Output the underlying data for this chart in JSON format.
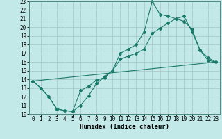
{
  "xlabel": "Humidex (Indice chaleur)",
  "bg_color": "#c2e8e8",
  "line_color": "#1a7a6a",
  "grid_color": "#a8cccc",
  "xlim": [
    -0.5,
    23.5
  ],
  "ylim": [
    10,
    23
  ],
  "xticks": [
    0,
    1,
    2,
    3,
    4,
    5,
    6,
    7,
    8,
    9,
    10,
    11,
    12,
    13,
    14,
    15,
    16,
    17,
    18,
    19,
    20,
    21,
    22,
    23
  ],
  "yticks": [
    10,
    11,
    12,
    13,
    14,
    15,
    16,
    17,
    18,
    19,
    20,
    21,
    22,
    23
  ],
  "line1_x": [
    0,
    1,
    2,
    3,
    4,
    5,
    6,
    7,
    8,
    9,
    10,
    11,
    12,
    13,
    14,
    15,
    16,
    17,
    18,
    19,
    20,
    21,
    22,
    23
  ],
  "line1_y": [
    13.8,
    13.0,
    12.0,
    10.6,
    10.4,
    10.3,
    12.7,
    13.2,
    13.9,
    14.2,
    15.0,
    16.3,
    16.7,
    17.0,
    17.5,
    19.3,
    19.9,
    20.5,
    21.0,
    21.3,
    19.5,
    17.4,
    16.2,
    16.0
  ],
  "line2_x": [
    0,
    1,
    2,
    3,
    4,
    5,
    6,
    7,
    8,
    9,
    10,
    11,
    12,
    13,
    14,
    15,
    16,
    17,
    18,
    19,
    20,
    21,
    22,
    23
  ],
  "line2_y": [
    13.8,
    13.0,
    12.0,
    10.6,
    10.4,
    10.3,
    11.0,
    12.1,
    13.5,
    14.3,
    15.0,
    17.0,
    17.5,
    18.0,
    19.5,
    23.0,
    21.5,
    21.3,
    21.0,
    20.7,
    19.8,
    17.4,
    16.5,
    16.0
  ],
  "line3_x": [
    0,
    23
  ],
  "line3_y": [
    13.8,
    16.0
  ]
}
